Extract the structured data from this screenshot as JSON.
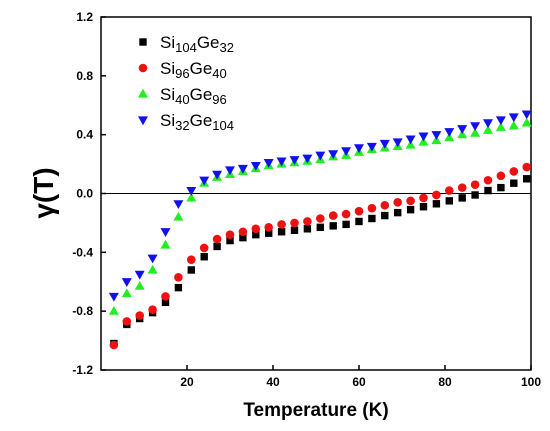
{
  "chart_data": {
    "type": "scatter",
    "xlabel": "Temperature (K)",
    "ylabel": "γ(T)",
    "xlim": [
      0,
      100
    ],
    "ylim": [
      -1.2,
      1.2
    ],
    "x_ticks": [
      "20",
      "40",
      "60",
      "80",
      "100"
    ],
    "y_ticks": [
      "-1.2",
      "-0.8",
      "-0.4",
      "0.0",
      "0.4",
      "0.8",
      "1.2"
    ],
    "reference_line_y": 0,
    "legend_position": "top-left",
    "x": [
      3,
      6,
      9,
      12,
      15,
      18,
      21,
      24,
      27,
      30,
      33,
      36,
      39,
      42,
      45,
      48,
      51,
      54,
      57,
      60,
      63,
      66,
      69,
      72,
      75,
      78,
      81,
      84,
      87,
      90,
      93,
      96,
      99
    ],
    "series": [
      {
        "name_parts": [
          [
            "Si",
            false
          ],
          [
            "104",
            true
          ],
          [
            "Ge",
            false
          ],
          [
            "32",
            true
          ]
        ],
        "marker": "square",
        "color": "#000000",
        "values": [
          -1.02,
          -0.89,
          -0.85,
          -0.81,
          -0.74,
          -0.64,
          -0.52,
          -0.43,
          -0.36,
          -0.32,
          -0.3,
          -0.28,
          -0.27,
          -0.26,
          -0.25,
          -0.24,
          -0.23,
          -0.22,
          -0.21,
          -0.19,
          -0.17,
          -0.15,
          -0.13,
          -0.11,
          -0.09,
          -0.07,
          -0.05,
          -0.03,
          -0.01,
          0.02,
          0.04,
          0.07,
          0.1
        ]
      },
      {
        "name_parts": [
          [
            "Si",
            false
          ],
          [
            "96",
            true
          ],
          [
            "Ge",
            false
          ],
          [
            "40",
            true
          ]
        ],
        "marker": "circle",
        "color": "#ee1111",
        "values": [
          -1.03,
          -0.87,
          -0.83,
          -0.79,
          -0.7,
          -0.57,
          -0.45,
          -0.37,
          -0.31,
          -0.28,
          -0.26,
          -0.24,
          -0.23,
          -0.21,
          -0.2,
          -0.19,
          -0.17,
          -0.15,
          -0.14,
          -0.12,
          -0.1,
          -0.08,
          -0.06,
          -0.05,
          -0.03,
          -0.01,
          0.02,
          0.04,
          0.06,
          0.09,
          0.12,
          0.15,
          0.18
        ]
      },
      {
        "name_parts": [
          [
            "Si",
            false
          ],
          [
            "40",
            true
          ],
          [
            "Ge",
            false
          ],
          [
            "96",
            true
          ]
        ],
        "marker": "triangle-up",
        "color": "#22ee22",
        "values": [
          -0.8,
          -0.68,
          -0.63,
          -0.52,
          -0.35,
          -0.16,
          -0.03,
          0.07,
          0.11,
          0.13,
          0.15,
          0.17,
          0.19,
          0.2,
          0.21,
          0.22,
          0.23,
          0.25,
          0.26,
          0.28,
          0.3,
          0.31,
          0.32,
          0.33,
          0.35,
          0.36,
          0.38,
          0.4,
          0.41,
          0.43,
          0.45,
          0.46,
          0.48
        ]
      },
      {
        "name_parts": [
          [
            "Si",
            false
          ],
          [
            "32",
            true
          ],
          [
            "Ge",
            false
          ],
          [
            "104",
            true
          ]
        ],
        "marker": "triangle-down",
        "color": "#1111ee",
        "values": [
          -0.7,
          -0.6,
          -0.55,
          -0.44,
          -0.26,
          -0.07,
          0.02,
          0.09,
          0.13,
          0.16,
          0.17,
          0.19,
          0.21,
          0.22,
          0.23,
          0.24,
          0.26,
          0.27,
          0.29,
          0.31,
          0.32,
          0.34,
          0.35,
          0.37,
          0.39,
          0.4,
          0.42,
          0.44,
          0.46,
          0.48,
          0.5,
          0.52,
          0.54
        ]
      }
    ]
  }
}
